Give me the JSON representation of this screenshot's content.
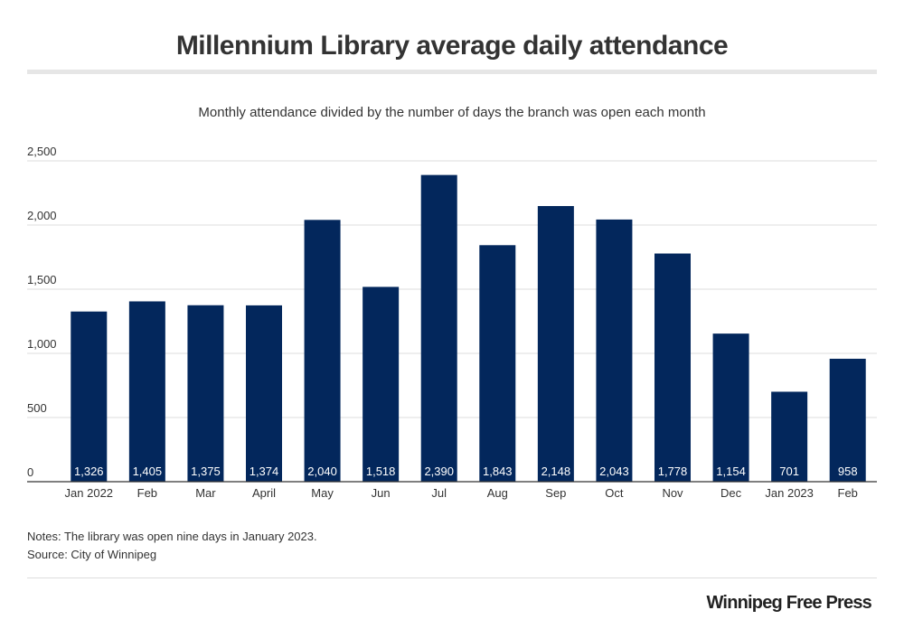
{
  "title": "Millennium Library average daily attendance",
  "subtitle": "Monthly attendance divided by the number of days the branch was open each month",
  "notes": "Notes: The library was open nine days in January 2023.",
  "source": "Source: City of Winnipeg",
  "brand": "Winnipeg Free Press",
  "colors": {
    "bar": "#03275c",
    "grid": "#dddddd",
    "axis": "#333333",
    "label_text": "#ffffff"
  },
  "chart_data": {
    "type": "bar",
    "categories": [
      "Jan 2022",
      "Feb",
      "Mar",
      "April",
      "May",
      "Jun",
      "Jul",
      "Aug",
      "Sep",
      "Oct",
      "Nov",
      "Dec",
      "Jan 2023",
      "Feb"
    ],
    "values": [
      1326,
      1405,
      1375,
      1374,
      2040,
      1518,
      2390,
      1843,
      2148,
      2043,
      1778,
      1154,
      701,
      958
    ],
    "value_labels": [
      "1,326",
      "1,405",
      "1,375",
      "1,374",
      "2,040",
      "1,518",
      "2,390",
      "1,843",
      "2,148",
      "2,043",
      "1,778",
      "1,154",
      "701",
      "958"
    ],
    "y_ticks": [
      0,
      500,
      1000,
      1500,
      2000,
      2500
    ],
    "y_tick_labels": [
      "0",
      "500",
      "1,000",
      "1,500",
      "2,000",
      "2,500"
    ],
    "ylim": [
      0,
      2500
    ],
    "xlabel": "",
    "ylabel": "",
    "grid": true,
    "legend": "none"
  }
}
